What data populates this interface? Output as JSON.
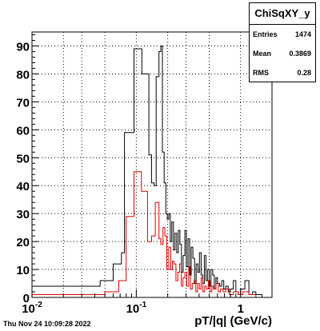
{
  "chart_data": {
    "type": "line",
    "title": "",
    "xlabel": "pT/|q| (GeV/c)",
    "ylabel": "",
    "x_scale": "log",
    "xlim": [
      0.01,
      2.0
    ],
    "ylim": [
      0,
      95
    ],
    "xticks": [
      {
        "value": 0.01,
        "label": "10^-2"
      },
      {
        "value": 0.1,
        "label": "10^-1"
      },
      {
        "value": 1,
        "label": "1"
      }
    ],
    "yticks": [
      0,
      10,
      20,
      30,
      40,
      50,
      60,
      70,
      80,
      90
    ],
    "grid": true,
    "series": [
      {
        "color": "#000000",
        "bins": [
          [
            0.01,
            0.045,
            4
          ],
          [
            0.045,
            0.06,
            6
          ],
          [
            0.06,
            0.072,
            12
          ],
          [
            0.072,
            0.077,
            16
          ],
          [
            0.077,
            0.095,
            59
          ],
          [
            0.095,
            0.113,
            89
          ],
          [
            0.113,
            0.132,
            80
          ],
          [
            0.132,
            0.14,
            51
          ],
          [
            0.14,
            0.148,
            41
          ],
          [
            0.148,
            0.155,
            40
          ],
          [
            0.155,
            0.165,
            79
          ],
          [
            0.165,
            0.172,
            88
          ],
          [
            0.172,
            0.178,
            90
          ],
          [
            0.178,
            0.185,
            52
          ],
          [
            0.185,
            0.192,
            41
          ],
          [
            0.192,
            0.198,
            30
          ],
          [
            0.198,
            0.205,
            28
          ],
          [
            0.205,
            0.212,
            30
          ],
          [
            0.212,
            0.219,
            20
          ],
          [
            0.219,
            0.227,
            27
          ],
          [
            0.227,
            0.235,
            17
          ],
          [
            0.235,
            0.244,
            23
          ],
          [
            0.244,
            0.253,
            16
          ],
          [
            0.253,
            0.262,
            24
          ],
          [
            0.262,
            0.271,
            19
          ],
          [
            0.271,
            0.281,
            9
          ],
          [
            0.281,
            0.292,
            15
          ],
          [
            0.292,
            0.302,
            24
          ],
          [
            0.302,
            0.313,
            11
          ],
          [
            0.313,
            0.325,
            21
          ],
          [
            0.325,
            0.336,
            8
          ],
          [
            0.336,
            0.349,
            18
          ],
          [
            0.349,
            0.362,
            14
          ],
          [
            0.362,
            0.375,
            5
          ],
          [
            0.375,
            0.389,
            12
          ],
          [
            0.389,
            0.403,
            9
          ],
          [
            0.403,
            0.418,
            16
          ],
          [
            0.418,
            0.433,
            8
          ],
          [
            0.433,
            0.449,
            5
          ],
          [
            0.449,
            0.465,
            15
          ],
          [
            0.465,
            0.482,
            6
          ],
          [
            0.482,
            0.5,
            10
          ],
          [
            0.5,
            0.52,
            4
          ],
          [
            0.52,
            0.54,
            10
          ],
          [
            0.54,
            0.56,
            8
          ],
          [
            0.56,
            0.58,
            3
          ],
          [
            0.58,
            0.6,
            7
          ],
          [
            0.6,
            0.63,
            5
          ],
          [
            0.63,
            0.66,
            4
          ],
          [
            0.66,
            0.69,
            6
          ],
          [
            0.69,
            0.72,
            3
          ],
          [
            0.72,
            0.76,
            4
          ],
          [
            0.76,
            0.8,
            2
          ],
          [
            0.8,
            0.85,
            3
          ],
          [
            0.85,
            0.9,
            6
          ],
          [
            0.9,
            0.95,
            2
          ],
          [
            0.95,
            1.0,
            1
          ],
          [
            1.0,
            1.1,
            3
          ],
          [
            1.1,
            1.2,
            6
          ],
          [
            1.2,
            1.3,
            1
          ],
          [
            1.3,
            1.4,
            2
          ],
          [
            1.4,
            1.6,
            1
          ],
          [
            1.6,
            1.8,
            0
          ]
        ]
      },
      {
        "color": "#dd0000",
        "bins": [
          [
            0.01,
            0.05,
            1
          ],
          [
            0.05,
            0.068,
            2
          ],
          [
            0.068,
            0.08,
            6
          ],
          [
            0.08,
            0.095,
            29
          ],
          [
            0.095,
            0.112,
            45
          ],
          [
            0.112,
            0.128,
            38
          ],
          [
            0.128,
            0.14,
            20
          ],
          [
            0.14,
            0.152,
            22
          ],
          [
            0.152,
            0.165,
            34
          ],
          [
            0.165,
            0.172,
            21
          ],
          [
            0.172,
            0.18,
            19
          ],
          [
            0.18,
            0.188,
            25
          ],
          [
            0.188,
            0.196,
            22
          ],
          [
            0.196,
            0.205,
            10
          ],
          [
            0.205,
            0.214,
            18
          ],
          [
            0.214,
            0.222,
            10
          ],
          [
            0.222,
            0.23,
            13
          ],
          [
            0.23,
            0.24,
            12
          ],
          [
            0.24,
            0.25,
            6
          ],
          [
            0.25,
            0.26,
            9
          ],
          [
            0.26,
            0.27,
            12
          ],
          [
            0.27,
            0.28,
            4
          ],
          [
            0.28,
            0.292,
            7
          ],
          [
            0.292,
            0.305,
            9
          ],
          [
            0.305,
            0.318,
            4
          ],
          [
            0.318,
            0.33,
            11
          ],
          [
            0.33,
            0.344,
            3
          ],
          [
            0.344,
            0.358,
            5
          ],
          [
            0.358,
            0.372,
            6
          ],
          [
            0.372,
            0.387,
            2
          ],
          [
            0.387,
            0.402,
            5
          ],
          [
            0.402,
            0.418,
            3
          ],
          [
            0.418,
            0.435,
            7
          ],
          [
            0.435,
            0.452,
            2
          ],
          [
            0.452,
            0.47,
            4
          ],
          [
            0.47,
            0.49,
            3
          ],
          [
            0.49,
            0.51,
            6
          ],
          [
            0.51,
            0.53,
            2
          ],
          [
            0.53,
            0.55,
            4
          ],
          [
            0.55,
            0.58,
            3
          ],
          [
            0.58,
            0.61,
            5
          ],
          [
            0.61,
            0.64,
            2
          ],
          [
            0.64,
            0.68,
            3
          ],
          [
            0.68,
            0.72,
            2
          ],
          [
            0.72,
            0.78,
            3
          ],
          [
            0.78,
            0.85,
            1
          ],
          [
            0.85,
            0.95,
            2
          ],
          [
            0.95,
            1.05,
            1
          ],
          [
            1.05,
            1.2,
            2
          ],
          [
            1.2,
            1.4,
            1
          ],
          [
            1.4,
            1.8,
            0
          ]
        ]
      }
    ]
  },
  "stats": {
    "name": "ChiSqXY_y",
    "entries_label": "Entries",
    "entries_value": "1474",
    "mean_label": "Mean",
    "mean_value": "0.3869",
    "rms_label": "RMS",
    "rms_value": "0.28"
  },
  "footer": {
    "date": "Thu Nov 24 10:09:28 2022"
  }
}
